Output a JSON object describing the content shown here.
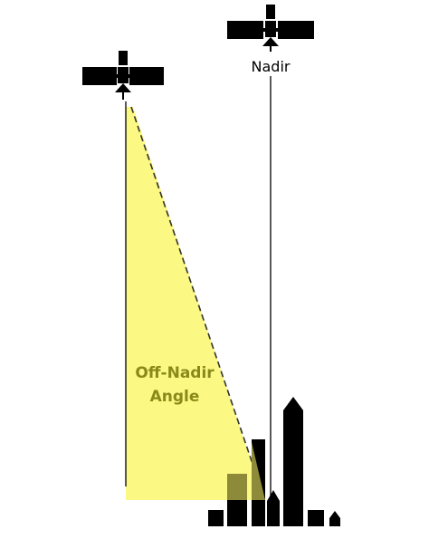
{
  "labels": {
    "nadir": "Nadir",
    "angle_line1": "Off-Nadir",
    "angle_line2": "Angle"
  },
  "colors": {
    "wedge": "#fbf883",
    "wedge_label": "#8a8a1a",
    "ink": "#000000",
    "overlap": "#8d8a3a"
  },
  "icons": [
    "satellite-icon",
    "satellite-icon"
  ]
}
